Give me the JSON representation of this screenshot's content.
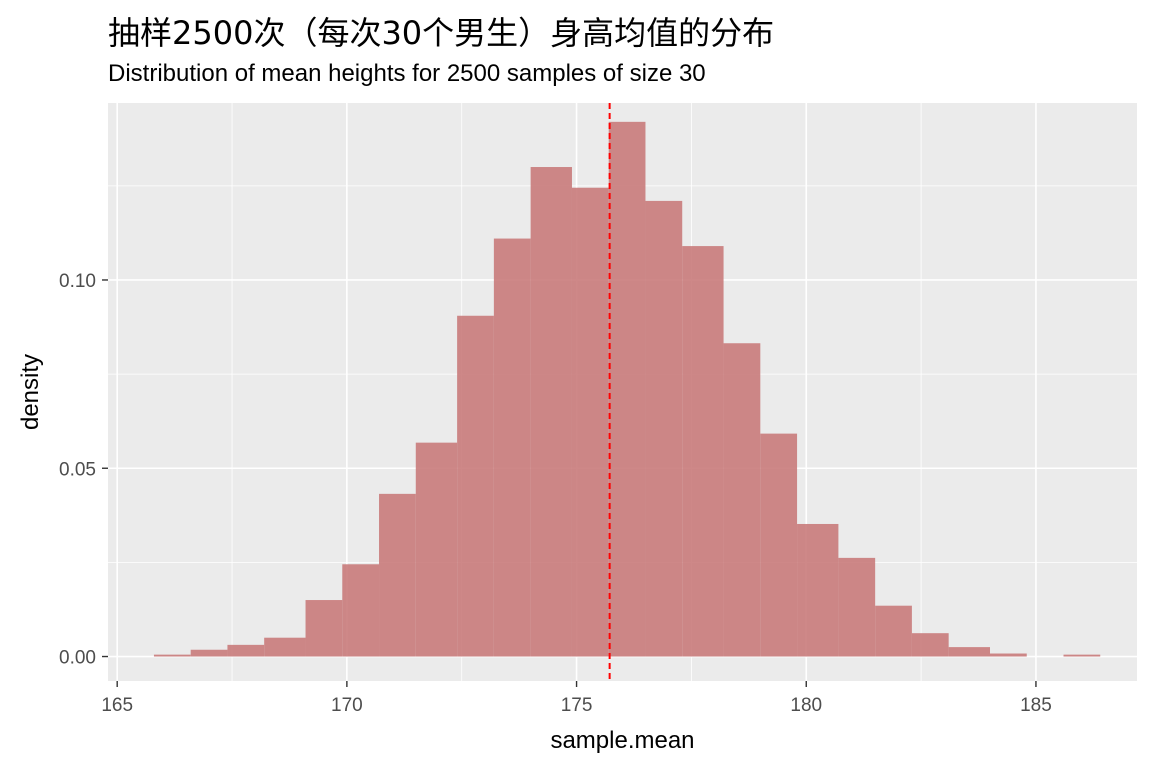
{
  "chart_data": {
    "type": "bar",
    "title": "抽样2500次（每次30个男生）身高均值的分布",
    "subtitle": "Distribution of mean heights for 2500 samples of size 30",
    "xlabel": "sample.mean",
    "ylabel": "density",
    "xlim": [
      164.8,
      187.2
    ],
    "ylim": [
      -0.0065,
      0.147
    ],
    "x_ticks": [
      165,
      170,
      175,
      180,
      185
    ],
    "x_tick_labels": [
      "165",
      "170",
      "175",
      "180",
      "185"
    ],
    "y_ticks": [
      0.0,
      0.05,
      0.1
    ],
    "y_tick_labels": [
      "0.00",
      "0.05",
      "0.10"
    ],
    "grid": true,
    "bin_width": 0.83,
    "bins": [
      {
        "x0": 165.8,
        "x1": 166.6,
        "density": 0.0005
      },
      {
        "x0": 166.6,
        "x1": 167.4,
        "density": 0.0018
      },
      {
        "x0": 167.4,
        "x1": 168.2,
        "density": 0.0031
      },
      {
        "x0": 168.2,
        "x1": 169.1,
        "density": 0.005
      },
      {
        "x0": 169.1,
        "x1": 169.9,
        "density": 0.015
      },
      {
        "x0": 169.9,
        "x1": 170.7,
        "density": 0.0245
      },
      {
        "x0": 170.7,
        "x1": 171.5,
        "density": 0.0432
      },
      {
        "x0": 171.5,
        "x1": 172.4,
        "density": 0.0568
      },
      {
        "x0": 172.4,
        "x1": 173.2,
        "density": 0.0905
      },
      {
        "x0": 173.2,
        "x1": 174.0,
        "density": 0.111
      },
      {
        "x0": 174.0,
        "x1": 174.9,
        "density": 0.13
      },
      {
        "x0": 174.9,
        "x1": 175.7,
        "density": 0.1245
      },
      {
        "x0": 175.7,
        "x1": 176.5,
        "density": 0.142
      },
      {
        "x0": 176.5,
        "x1": 177.3,
        "density": 0.121
      },
      {
        "x0": 177.3,
        "x1": 178.2,
        "density": 0.109
      },
      {
        "x0": 178.2,
        "x1": 179.0,
        "density": 0.0832
      },
      {
        "x0": 179.0,
        "x1": 179.8,
        "density": 0.0592
      },
      {
        "x0": 179.8,
        "x1": 180.7,
        "density": 0.0352
      },
      {
        "x0": 180.7,
        "x1": 181.5,
        "density": 0.0262
      },
      {
        "x0": 181.5,
        "x1": 182.3,
        "density": 0.0135
      },
      {
        "x0": 182.3,
        "x1": 183.1,
        "density": 0.0062
      },
      {
        "x0": 183.1,
        "x1": 184.0,
        "density": 0.0025
      },
      {
        "x0": 184.0,
        "x1": 184.8,
        "density": 0.0008
      },
      {
        "x0": 184.8,
        "x1": 185.6,
        "density": 0.0
      },
      {
        "x0": 185.6,
        "x1": 186.4,
        "density": 0.0005
      }
    ],
    "mean_line": {
      "x": 175.72
    },
    "colors": {
      "bar_fill": "#c97b7b",
      "panel_bg": "#ebebeb",
      "grid": "#ffffff",
      "mean_line": "#ff0000"
    }
  }
}
